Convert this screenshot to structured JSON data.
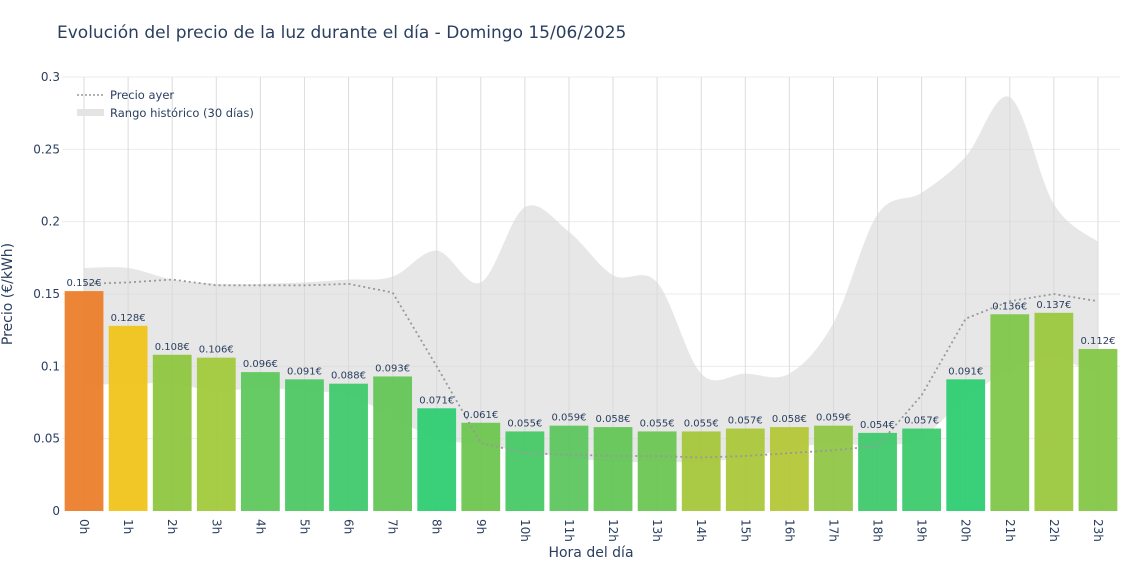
{
  "chart_data": {
    "type": "bar",
    "title": "Evolución del precio de la luz durante el día - Domingo 15/06/2025",
    "xlabel": "Hora del día",
    "ylabel": "Precio (€/kWh)",
    "ylim": [
      0,
      0.3
    ],
    "yticks": [
      "0",
      "0.05",
      "0.1",
      "0.15",
      "0.2",
      "0.25",
      "0.3"
    ],
    "categories": [
      "0h",
      "1h",
      "2h",
      "3h",
      "4h",
      "5h",
      "6h",
      "7h",
      "8h",
      "9h",
      "10h",
      "11h",
      "12h",
      "13h",
      "14h",
      "15h",
      "16h",
      "17h",
      "18h",
      "19h",
      "20h",
      "21h",
      "22h",
      "23h"
    ],
    "values": [
      0.152,
      0.128,
      0.108,
      0.106,
      0.096,
      0.091,
      0.088,
      0.093,
      0.071,
      0.061,
      0.055,
      0.059,
      0.058,
      0.055,
      0.055,
      0.057,
      0.058,
      0.059,
      0.054,
      0.057,
      0.091,
      0.136,
      0.137,
      0.112
    ],
    "value_labels": [
      "0.152€",
      "0.128€",
      "0.108€",
      "0.106€",
      "0.096€",
      "0.091€",
      "0.088€",
      "0.093€",
      "0.071€",
      "0.061€",
      "0.055€",
      "0.059€",
      "0.058€",
      "0.055€",
      "0.055€",
      "0.057€",
      "0.058€",
      "0.059€",
      "0.054€",
      "0.057€",
      "0.091€",
      "0.136€",
      "0.137€",
      "0.112€"
    ],
    "bar_colors": [
      "#ec7d2a",
      "#f0c419",
      "#8dc63f",
      "#a2c93a",
      "#5cc85a",
      "#4cc863",
      "#3ec96b",
      "#63c655",
      "#2ecc71",
      "#6bc64e",
      "#45c965",
      "#5ac65c",
      "#62c655",
      "#6ac651",
      "#a5c73a",
      "#aac738",
      "#b3c735",
      "#8ec644",
      "#3ec96b",
      "#3bca6b",
      "#2ecc71",
      "#7ec748",
      "#9ac83e",
      "#84c746"
    ],
    "series": [
      {
        "name": "Precio ayer",
        "values": [
          0.157,
          0.158,
          0.16,
          0.156,
          0.156,
          0.156,
          0.157,
          0.151,
          0.1,
          0.047,
          0.04,
          0.039,
          0.038,
          0.038,
          0.037,
          0.038,
          0.04,
          0.042,
          0.045,
          0.08,
          0.133,
          0.145,
          0.15,
          0.145
        ],
        "color": "#999999",
        "style": "dotted"
      },
      {
        "name": "Rango histórico (30 días)",
        "upper": [
          0.168,
          0.168,
          0.16,
          0.157,
          0.157,
          0.158,
          0.16,
          0.162,
          0.18,
          0.158,
          0.21,
          0.193,
          0.163,
          0.158,
          0.095,
          0.095,
          0.095,
          0.13,
          0.205,
          0.22,
          0.245,
          0.286,
          0.212,
          0.186
        ],
        "lower": [
          0.087,
          0.088,
          0.088,
          0.083,
          0.085,
          0.083,
          0.08,
          0.065,
          0.05,
          0.046,
          0.041,
          0.037,
          0.034,
          0.034,
          0.034,
          0.037,
          0.043,
          0.047,
          0.045,
          0.051,
          0.078,
          0.097,
          0.106,
          0.093
        ],
        "color": "#e6e6e6",
        "style": "band"
      }
    ],
    "legend_position": "top-left",
    "grid": true
  }
}
